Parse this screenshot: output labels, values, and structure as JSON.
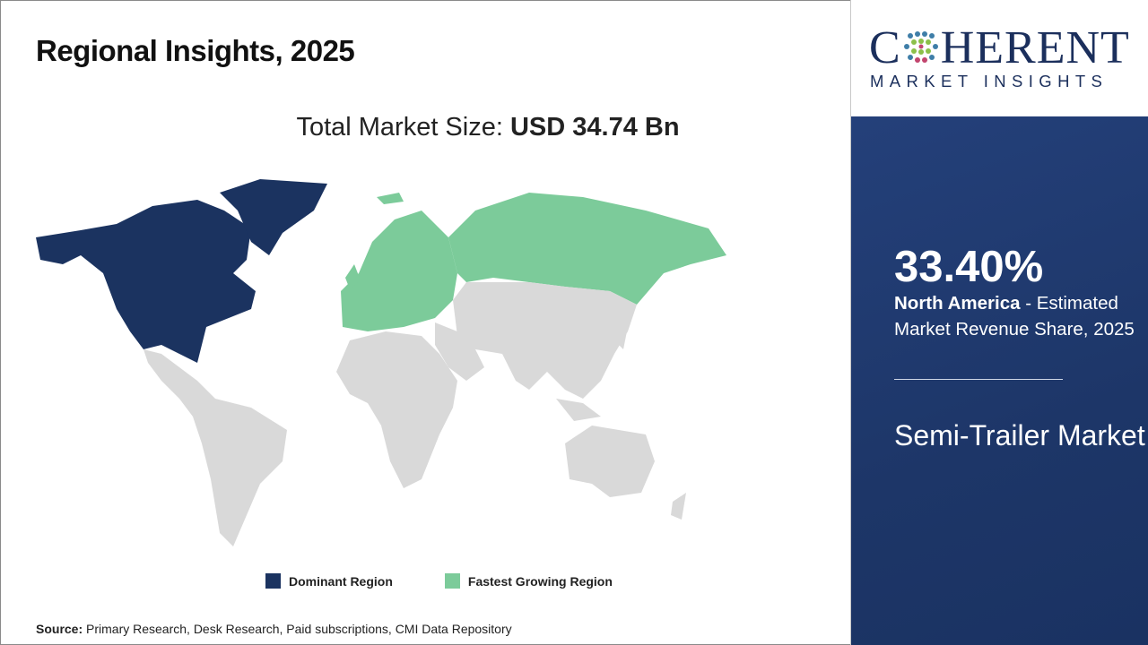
{
  "title": "Regional Insights, 2025",
  "total_market": {
    "label": "Total Market Size: ",
    "value": "USD 34.74 Bn"
  },
  "legend": [
    {
      "label": "Dominant Region",
      "color": "#1b3360"
    },
    {
      "label": "Fastest Growing Region",
      "color": "#7ccb9a"
    }
  ],
  "map_colors": {
    "dominant": "#1b3360",
    "fastest": "#7ccb9a",
    "other": "#d9d9d9"
  },
  "regions": {
    "dominant": "North America",
    "fastest": "Europe"
  },
  "source": {
    "label": "Source:",
    "text": " Primary Research, Desk Research, Paid subscriptions, CMI Data Repository"
  },
  "logo": {
    "top": "COHERENT",
    "bottom": "MARKET INSIGHTS"
  },
  "panel": {
    "share": "33.40%",
    "region": "North America",
    "description": " - Estimated Market Revenue Share, 2025",
    "market": "Semi-Trailer Market",
    "background": "#1d3668"
  }
}
